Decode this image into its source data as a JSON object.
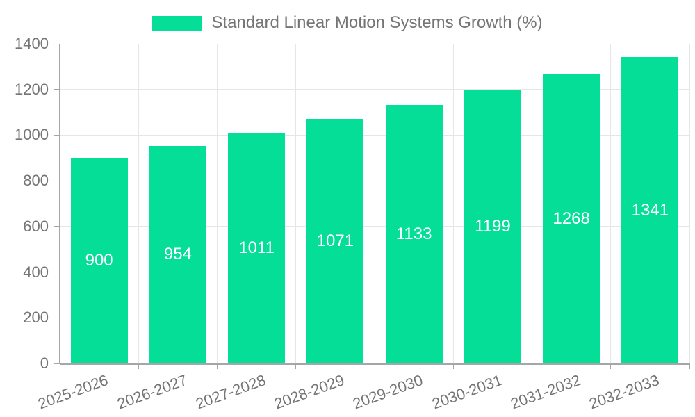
{
  "legend": {
    "label": "Standard Linear Motion Systems Growth (%)"
  },
  "chart_data": {
    "type": "bar",
    "title": "",
    "xlabel": "",
    "ylabel": "",
    "categories": [
      "2025-2026",
      "2026-2027",
      "2027-2028",
      "2028-2029",
      "2029-2030",
      "2030-2031",
      "2031-2032",
      "2032-2033"
    ],
    "values": [
      900,
      954,
      1011,
      1071,
      1133,
      1199,
      1268,
      1341
    ],
    "series": [
      {
        "name": "Standard Linear Motion Systems Growth (%)",
        "values": [
          900,
          954,
          1011,
          1071,
          1133,
          1199,
          1268,
          1341
        ]
      }
    ],
    "value_labels": [
      "900",
      "954",
      "1011",
      "1071",
      "1133",
      "1199",
      "1268",
      "1341"
    ],
    "ylim": [
      0,
      1400
    ],
    "yticks": [
      0,
      200,
      400,
      600,
      800,
      1000,
      1200,
      1400
    ],
    "grid": true,
    "legend_position": "top-center",
    "xtick_rotation_deg": -20,
    "colors": {
      "bar": "#05de96",
      "value_label": "#ffffff",
      "axis": "#a6a6a6",
      "gridline": "#e6e6e6",
      "tick_label": "#757575",
      "legend_text": "#757575",
      "background": "#ffffff"
    }
  }
}
